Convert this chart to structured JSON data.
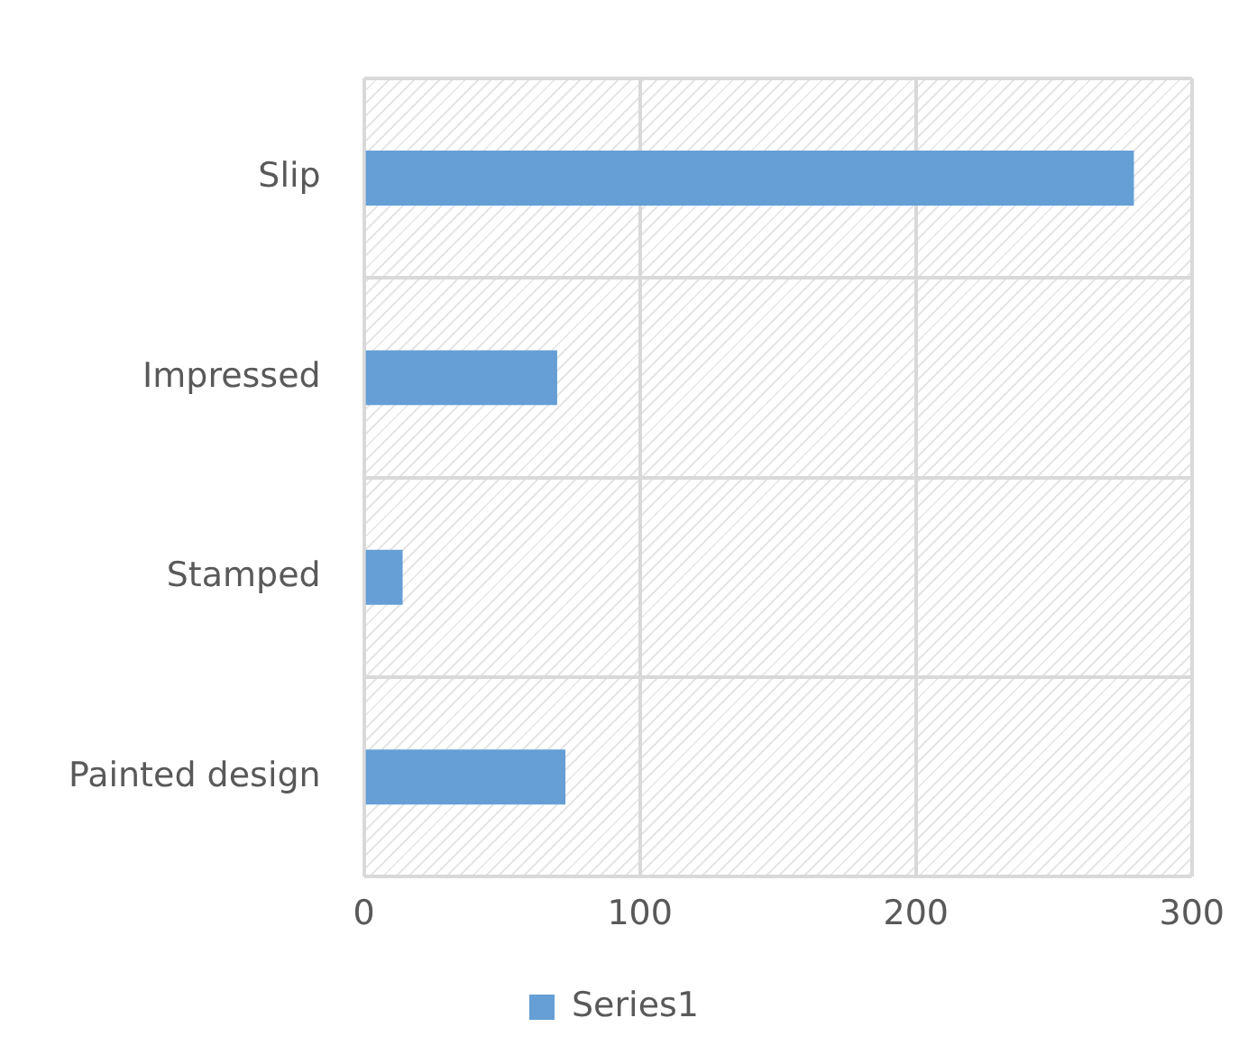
{
  "chart_data": {
    "type": "bar",
    "orientation": "horizontal",
    "categories": [
      "Slip",
      "Impressed",
      "Stamped",
      "Painted design"
    ],
    "series": [
      {
        "name": "Series1",
        "color": "#659fd6",
        "values": [
          279,
          70,
          14,
          73
        ]
      }
    ],
    "xlim": [
      0,
      300
    ],
    "xticks": [
      0,
      100,
      200,
      300
    ],
    "grid": true,
    "legend": "bottom"
  }
}
